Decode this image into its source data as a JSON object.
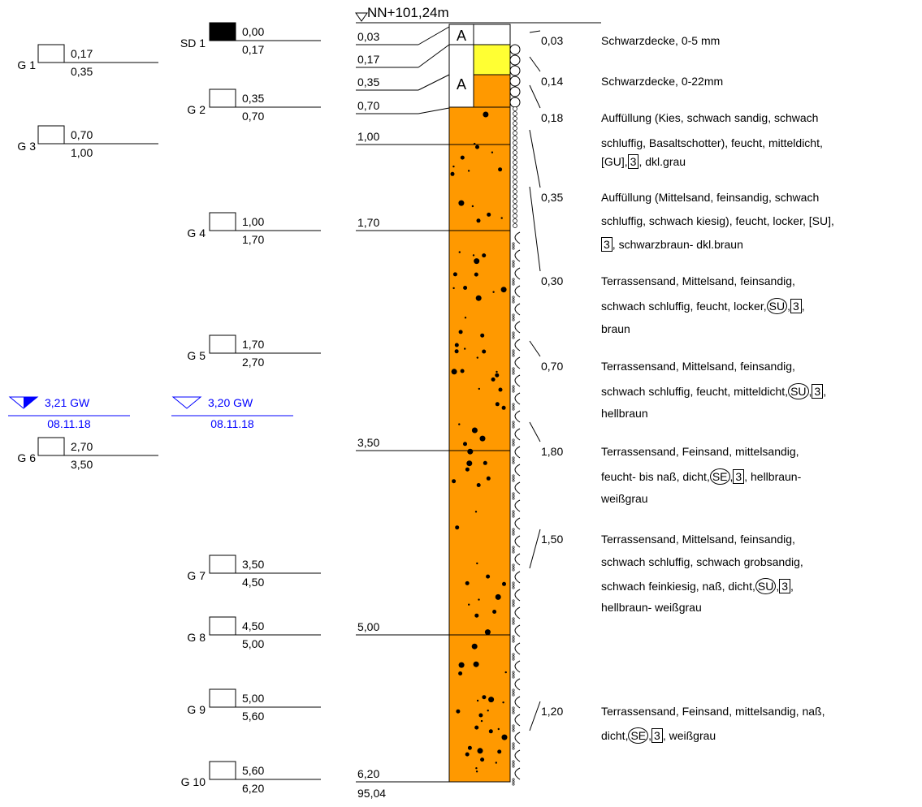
{
  "header": {
    "elevation": "NN+101,24m"
  },
  "samples": [
    {
      "label": "SD 1",
      "top": "0,00",
      "bottom": "0,17"
    },
    {
      "label": "G 1",
      "top": "0,17",
      "bottom": "0,35"
    },
    {
      "label": "G 2",
      "top": "0,35",
      "bottom": "0,70"
    },
    {
      "label": "G 3",
      "top": "0,70",
      "bottom": "1,00"
    },
    {
      "label": "G 4",
      "top": "1,00",
      "bottom": "1,70"
    },
    {
      "label": "G 5",
      "top": "1,70",
      "bottom": "2,70"
    },
    {
      "label": "G 6",
      "top": "2,70",
      "bottom": "3,50"
    },
    {
      "label": "G 7",
      "top": "3,50",
      "bottom": "4,50"
    },
    {
      "label": "G 8",
      "top": "4,50",
      "bottom": "5,00"
    },
    {
      "label": "G 9",
      "top": "5,00",
      "bottom": "5,60"
    },
    {
      "label": "G 10",
      "top": "5,60",
      "bottom": "6,20"
    }
  ],
  "groundwater": [
    {
      "depth": "3,21 GW",
      "date": "08.11.18"
    },
    {
      "depth": "3,20 GW",
      "date": "08.11.18"
    }
  ],
  "depths": [
    "0,03",
    "0,17",
    "0,35",
    "0,70",
    "1,00",
    "1,70",
    "3,50",
    "5,00",
    "6,20"
  ],
  "base_elevation": "95,04",
  "fill_symbols": [
    "A",
    "A"
  ],
  "layers": [
    {
      "thickness": "0,03",
      "description": [
        [
          "Schwarzdecke, 0-5 mm"
        ]
      ]
    },
    {
      "thickness": "0,14",
      "description": [
        [
          "Schwarzdecke, 0-22mm"
        ]
      ]
    },
    {
      "thickness": "0,18",
      "description": [
        [
          "Auffüllung (Kies, schwach sandig, schwach"
        ],
        [
          "schluffig, Basaltschotter), feucht, mitteldicht,"
        ],
        [
          "[GU],",
          {
            "box": "3"
          },
          ", dkl.grau"
        ]
      ]
    },
    {
      "thickness": "0,35",
      "description": [
        [
          "Auffüllung (Mittelsand, feinsandig, schwach"
        ],
        [
          "schluffig, schwach kiesig), feucht, locker, [SU],"
        ],
        [
          {
            "box": "3"
          },
          ", schwarzbraun-  dkl.braun"
        ]
      ]
    },
    {
      "thickness": "0,30",
      "description": [
        [
          "Terrassensand, Mittelsand, feinsandig,"
        ],
        [
          "schwach schluffig, feucht, locker,",
          {
            "circle": "SU"
          },
          ",",
          {
            "box": "3"
          },
          ","
        ],
        [
          "braun"
        ]
      ]
    },
    {
      "thickness": "0,70",
      "description": [
        [
          "Terrassensand, Mittelsand, feinsandig,"
        ],
        [
          "schwach schluffig, feucht, mitteldicht,",
          {
            "circle": "SU"
          },
          ",",
          {
            "box": "3"
          },
          ","
        ],
        [
          "hellbraun"
        ]
      ]
    },
    {
      "thickness": "1,80",
      "description": [
        [
          "Terrassensand, Feinsand, mittelsandig,"
        ],
        [
          "feucht- bis naß, dicht,",
          {
            "circle": "SE"
          },
          ",",
          {
            "box": "3"
          },
          ", hellbraun-"
        ],
        [
          "weißgrau"
        ]
      ]
    },
    {
      "thickness": "1,50",
      "description": [
        [
          "Terrassensand, Mittelsand, feinsandig,"
        ],
        [
          "schwach schluffig, schwach grobsandig,"
        ],
        [
          "schwach feinkiesig, naß, dicht,",
          {
            "circle": "SU"
          },
          ",",
          {
            "box": "3"
          },
          ","
        ],
        [
          "hellbraun-  weißgrau"
        ]
      ]
    },
    {
      "thickness": "1,20",
      "description": [
        [
          "Terrassensand, Feinsand, mittelsandig, naß,"
        ],
        [
          "dicht,",
          {
            "circle": "SE"
          },
          ",",
          {
            "box": "3"
          },
          ", weißgrau"
        ]
      ]
    }
  ]
}
